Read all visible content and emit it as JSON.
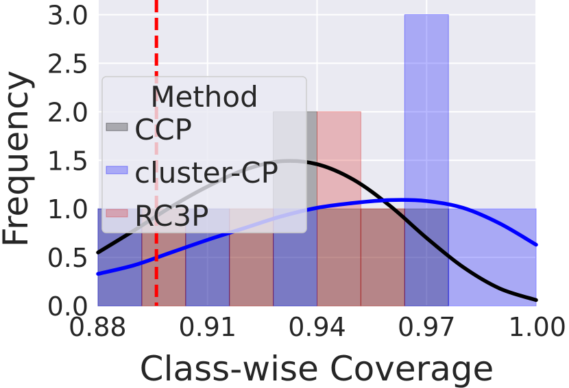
{
  "chart_data": {
    "type": "histogram",
    "xlabel": "Class-wise Coverage",
    "ylabel": "Frequency",
    "xlim": [
      0.88,
      1.0
    ],
    "ylim": [
      0,
      3.2
    ],
    "xticks": [
      "0.88",
      "0.91",
      "0.94",
      "0.97",
      "1.00"
    ],
    "xtick_values": [
      0.88,
      0.91,
      0.94,
      0.97,
      1.0
    ],
    "yticks": [
      "0.0",
      "0.5",
      "1.0",
      "1.5",
      "2.0",
      "2.5",
      "3.0"
    ],
    "ytick_values": [
      0,
      0.5,
      1.0,
      1.5,
      2.0,
      2.5,
      3.0
    ],
    "grid": true,
    "legend": {
      "title": "Method",
      "placement": "upper-left",
      "entries": [
        "CCP",
        "cluster-CP",
        "RC3P"
      ]
    },
    "reference_line": {
      "x": 0.896,
      "color": "#ff0000",
      "style": "dashed"
    },
    "series": [
      {
        "name": "CCP",
        "color": "#000000",
        "bins": [
          {
            "x0": 0.88,
            "x1": 0.892,
            "count": 1
          },
          {
            "x0": 0.892,
            "x1": 0.904,
            "count": 1
          },
          {
            "x0": 0.904,
            "x1": 0.916,
            "count": 1
          },
          {
            "x0": 0.916,
            "x1": 0.928,
            "count": 1
          },
          {
            "x0": 0.928,
            "x1": 0.94,
            "count": 2
          },
          {
            "x0": 0.94,
            "x1": 0.952,
            "count": 1
          },
          {
            "x0": 0.952,
            "x1": 0.964,
            "count": 1
          },
          {
            "x0": 0.964,
            "x1": 0.976,
            "count": 1
          }
        ],
        "kde": [
          [
            0.88,
            0.55
          ],
          [
            0.89,
            0.78
          ],
          [
            0.9,
            1.02
          ],
          [
            0.91,
            1.23
          ],
          [
            0.92,
            1.4
          ],
          [
            0.93,
            1.49
          ],
          [
            0.94,
            1.46
          ],
          [
            0.95,
            1.3
          ],
          [
            0.96,
            1.03
          ],
          [
            0.97,
            0.7
          ],
          [
            0.98,
            0.4
          ],
          [
            0.99,
            0.18
          ],
          [
            1.0,
            0.06
          ]
        ]
      },
      {
        "name": "cluster-CP",
        "color": "#0000ff",
        "bins": [
          {
            "x0": 0.88,
            "x1": 0.892,
            "count": 1
          },
          {
            "x0": 0.904,
            "x1": 0.916,
            "count": 1
          },
          {
            "x0": 0.928,
            "x1": 0.94,
            "count": 1
          },
          {
            "x0": 0.964,
            "x1": 0.976,
            "count": 3
          },
          {
            "x0": 0.976,
            "x1": 1.0,
            "count": 1
          }
        ],
        "kde": [
          [
            0.88,
            0.33
          ],
          [
            0.89,
            0.42
          ],
          [
            0.9,
            0.55
          ],
          [
            0.91,
            0.68
          ],
          [
            0.92,
            0.8
          ],
          [
            0.93,
            0.92
          ],
          [
            0.94,
            1.01
          ],
          [
            0.95,
            1.06
          ],
          [
            0.96,
            1.09
          ],
          [
            0.97,
            1.08
          ],
          [
            0.98,
            1.01
          ],
          [
            0.99,
            0.85
          ],
          [
            1.0,
            0.63
          ]
        ]
      },
      {
        "name": "RC3P",
        "color": "#d62728",
        "bins": [
          {
            "x0": 0.892,
            "x1": 0.904,
            "count": 1
          },
          {
            "x0": 0.916,
            "x1": 0.928,
            "count": 1
          },
          {
            "x0": 0.94,
            "x1": 0.952,
            "count": 2
          },
          {
            "x0": 0.952,
            "x1": 0.964,
            "count": 1
          }
        ]
      }
    ]
  }
}
